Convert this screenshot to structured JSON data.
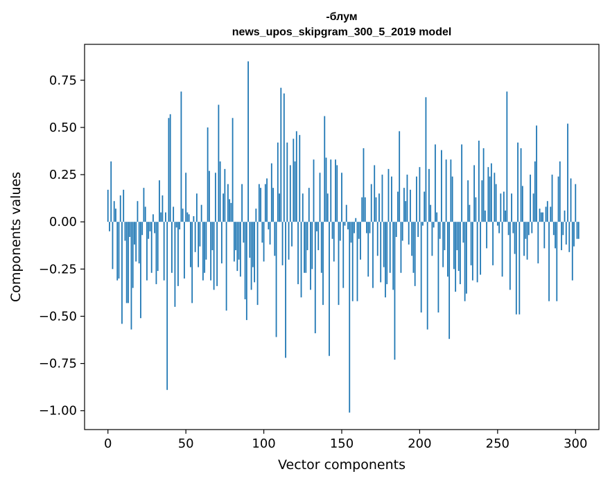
{
  "chart_data": {
    "type": "bar",
    "title_line1": "-блум",
    "title_line2": "news_upos_skipgram_300_5_2019 model",
    "xlabel": "Vector components",
    "ylabel": "Components values",
    "xlim": [
      -15,
      315
    ],
    "ylim": [
      -1.1,
      0.94
    ],
    "xticks": [
      0,
      50,
      100,
      150,
      200,
      250,
      300
    ],
    "xtick_labels": [
      "0",
      "50",
      "100",
      "150",
      "200",
      "250",
      "300"
    ],
    "yticks": [
      0.75,
      0.5,
      0.25,
      0.0,
      -0.25,
      -0.5,
      -0.75,
      -1.0
    ],
    "ytick_labels": [
      "0.75",
      "0.50",
      "0.25",
      "0.00",
      "−0.25",
      "−0.50",
      "−0.75",
      "−1.00"
    ],
    "bar_color": "#1f77b4",
    "values": [
      0.17,
      -0.05,
      0.32,
      -0.25,
      0.11,
      0.07,
      -0.31,
      -0.3,
      0.14,
      -0.54,
      0.17,
      -0.1,
      -0.43,
      -0.43,
      -0.08,
      -0.57,
      -0.35,
      -0.12,
      -0.21,
      0.11,
      -0.22,
      -0.51,
      -0.07,
      0.18,
      0.08,
      -0.31,
      -0.09,
      -0.05,
      -0.27,
      0.04,
      -0.06,
      -0.33,
      -0.26,
      0.22,
      0.05,
      0.14,
      -0.31,
      0.05,
      -0.89,
      0.55,
      0.57,
      -0.27,
      0.08,
      -0.45,
      -0.03,
      -0.34,
      -0.04,
      0.69,
      0.07,
      -0.3,
      0.26,
      0.05,
      0.04,
      -0.24,
      -0.43,
      0.03,
      -0.16,
      0.15,
      -0.24,
      -0.13,
      0.09,
      -0.31,
      -0.27,
      -0.2,
      0.5,
      0.27,
      -0.31,
      -0.15,
      -0.36,
      0.26,
      -0.34,
      0.62,
      0.32,
      -0.22,
      0.15,
      0.28,
      -0.47,
      0.2,
      0.12,
      0.1,
      0.55,
      -0.21,
      -0.15,
      -0.26,
      -0.2,
      -0.29,
      0.2,
      -0.11,
      -0.41,
      -0.52,
      0.85,
      -0.19,
      -0.36,
      -0.24,
      -0.32,
      0.07,
      -0.44,
      0.2,
      0.18,
      -0.11,
      -0.21,
      0.2,
      0.23,
      -0.04,
      -0.12,
      0.31,
      0.18,
      -0.18,
      -0.61,
      0.42,
      0.15,
      0.71,
      -0.23,
      0.68,
      -0.72,
      0.42,
      -0.2,
      0.3,
      -0.13,
      0.44,
      0.32,
      0.48,
      -0.33,
      0.46,
      -0.4,
      0.15,
      -0.27,
      -0.27,
      -0.15,
      0.18,
      -0.36,
      -0.25,
      0.33,
      -0.59,
      -0.05,
      -0.15,
      0.26,
      -0.27,
      -0.44,
      0.56,
      0.34,
      0.15,
      -0.71,
      0.33,
      -0.09,
      -0.21,
      0.33,
      0.3,
      -0.44,
      -0.1,
      0.26,
      -0.35,
      -0.02,
      0.09,
      -0.04,
      -1.01,
      -0.11,
      -0.42,
      -0.06,
      0.02,
      -0.42,
      -0.09,
      -0.2,
      0.13,
      0.39,
      0.13,
      -0.06,
      -0.29,
      -0.06,
      0.2,
      -0.35,
      0.3,
      0.13,
      -0.18,
      0.15,
      -0.32,
      0.25,
      -0.24,
      -0.4,
      -0.33,
      0.28,
      -0.27,
      0.24,
      -0.36,
      -0.73,
      -0.08,
      0.16,
      0.48,
      -0.27,
      -0.1,
      0.18,
      0.11,
      0.25,
      -0.12,
      0.17,
      -0.18,
      -0.27,
      -0.34,
      0.24,
      -0.08,
      0.29,
      -0.48,
      -0.02,
      0.16,
      0.66,
      -0.57,
      0.28,
      0.09,
      -0.18,
      -0.03,
      0.41,
      0.05,
      -0.48,
      -0.09,
      0.38,
      -0.24,
      -0.15,
      0.33,
      -0.29,
      -0.62,
      0.33,
      0.24,
      -0.25,
      -0.37,
      -0.15,
      -0.26,
      -0.33,
      0.41,
      -0.11,
      -0.42,
      -0.38,
      0.22,
      0.09,
      -0.23,
      -0.31,
      0.3,
      0.13,
      -0.32,
      0.43,
      -0.28,
      0.22,
      0.39,
      0.06,
      -0.14,
      0.29,
      0.24,
      0.31,
      -0.23,
      0.26,
      0.2,
      -0.02,
      -0.06,
      0.15,
      -0.29,
      0.16,
      0.06,
      0.69,
      -0.07,
      -0.36,
      0.15,
      -0.06,
      -0.17,
      -0.49,
      0.42,
      -0.49,
      0.39,
      0.19,
      -0.18,
      -0.09,
      -0.2,
      -0.07,
      0.25,
      -0.06,
      0.15,
      0.32,
      0.51,
      -0.22,
      0.07,
      0.05,
      0.05,
      -0.14,
      0.08,
      0.11,
      -0.42,
      0.08,
      0.25,
      -0.07,
      -0.14,
      -0.42,
      0.24,
      0.32,
      -0.15,
      -0.07,
      0.06,
      -0.12,
      0.52,
      -0.16,
      0.23,
      -0.31,
      -0.13,
      0.2,
      -0.09,
      -0.09
    ]
  }
}
